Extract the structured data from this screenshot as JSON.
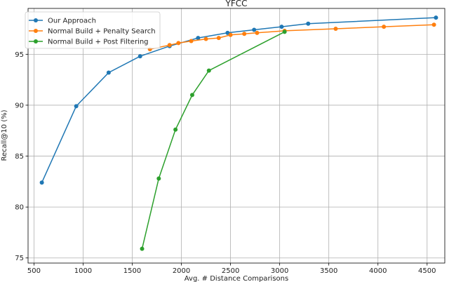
{
  "chart_data": {
    "type": "line",
    "title": "YFCC",
    "xlabel": "Avg. # Distance Comparisons",
    "ylabel": "Recall@10 (%)",
    "xlim": [
      440,
      4680
    ],
    "ylim": [
      74.5,
      99.5
    ],
    "xticks": [
      500,
      1000,
      1500,
      2000,
      2500,
      3000,
      3500,
      4000,
      4500
    ],
    "yticks": [
      75,
      80,
      85,
      90,
      95
    ],
    "grid": true,
    "legend_position": "top-left",
    "series": [
      {
        "name": "Our Approach",
        "color": "#1f77b4",
        "x": [
          580,
          930,
          1260,
          1580,
          1880,
          2170,
          2470,
          2740,
          3020,
          3290,
          4590
        ],
        "y": [
          82.4,
          89.9,
          93.2,
          94.8,
          95.8,
          96.6,
          97.1,
          97.4,
          97.7,
          98.0,
          98.6
        ]
      },
      {
        "name": "Normal Build + Penalty Search",
        "color": "#ff7f0e",
        "x": [
          1680,
          1880,
          1970,
          2100,
          2250,
          2380,
          2500,
          2640,
          2770,
          3050,
          3570,
          4060,
          4570
        ],
        "y": [
          95.5,
          95.9,
          96.1,
          96.3,
          96.5,
          96.6,
          96.9,
          97.0,
          97.1,
          97.3,
          97.5,
          97.7,
          97.9
        ]
      },
      {
        "name": "Normal Build + Post Filtering",
        "color": "#2ca02c",
        "x": [
          1600,
          1770,
          1940,
          2110,
          2280,
          3050
        ],
        "y": [
          75.9,
          82.8,
          87.6,
          91.0,
          93.4,
          97.2
        ]
      }
    ]
  }
}
